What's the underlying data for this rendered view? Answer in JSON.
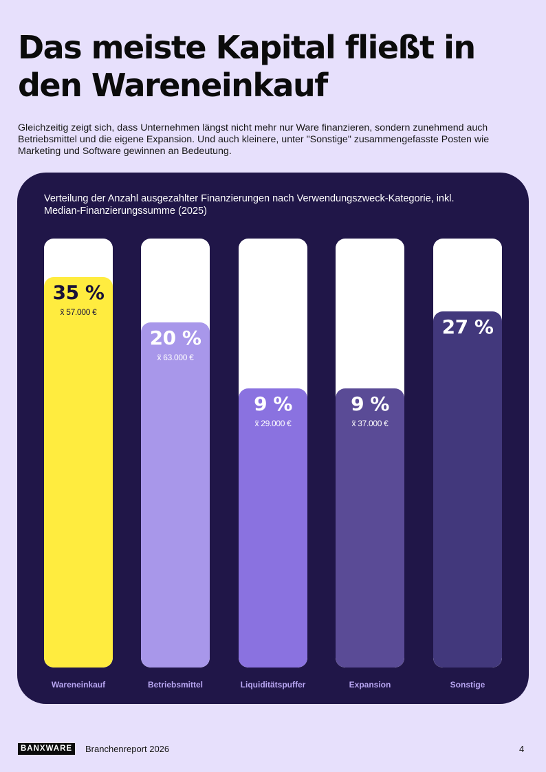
{
  "title": "Das meiste Kapital fließt in den Wareneinkauf",
  "lead": "Gleichzeitig zeigt sich, dass Unternehmen längst nicht mehr nur Ware finanzieren, sondern zunehmend auch Betriebsmittel und die eigene Expansion. Und auch kleinere, unter \"Sonstige\" zusammengefasste Posten wie Marketing und Software gewinnen an Bedeutung.",
  "chart_data": {
    "type": "bar",
    "title": "Verteilung der Anzahl ausgezahlter Finanzierungen nach Verwendungszweck-Kategorie, inkl. Median-Finanzierungssumme (2025)",
    "categories": [
      "Wareneinkauf",
      "Betriebsmittel",
      "Liquiditätspuffer",
      "Expansion",
      "Sonstige"
    ],
    "values": [
      35,
      20,
      9,
      9,
      27
    ],
    "value_labels": [
      "35 %",
      "20 %",
      "9 %",
      "9 %",
      "27 %"
    ],
    "median_labels": [
      "x̃ 57.000 €",
      "x̃ 63.000 €",
      "x̃ 29.000 €",
      "x̃ 37.000 €",
      ""
    ],
    "fill_fraction": [
      0.91,
      0.805,
      0.65,
      0.65,
      0.83
    ],
    "colors": [
      "#ffec3f",
      "#a897ea",
      "#8a72e0",
      "#5a4b96",
      "#42387c"
    ],
    "text_colors": [
      "#1a1238",
      "#ffffff",
      "#ffffff",
      "#ffffff",
      "#ffffff"
    ]
  },
  "footer": {
    "logo": "BANXWARE",
    "report": "Branchenreport 2026",
    "page": "4"
  }
}
